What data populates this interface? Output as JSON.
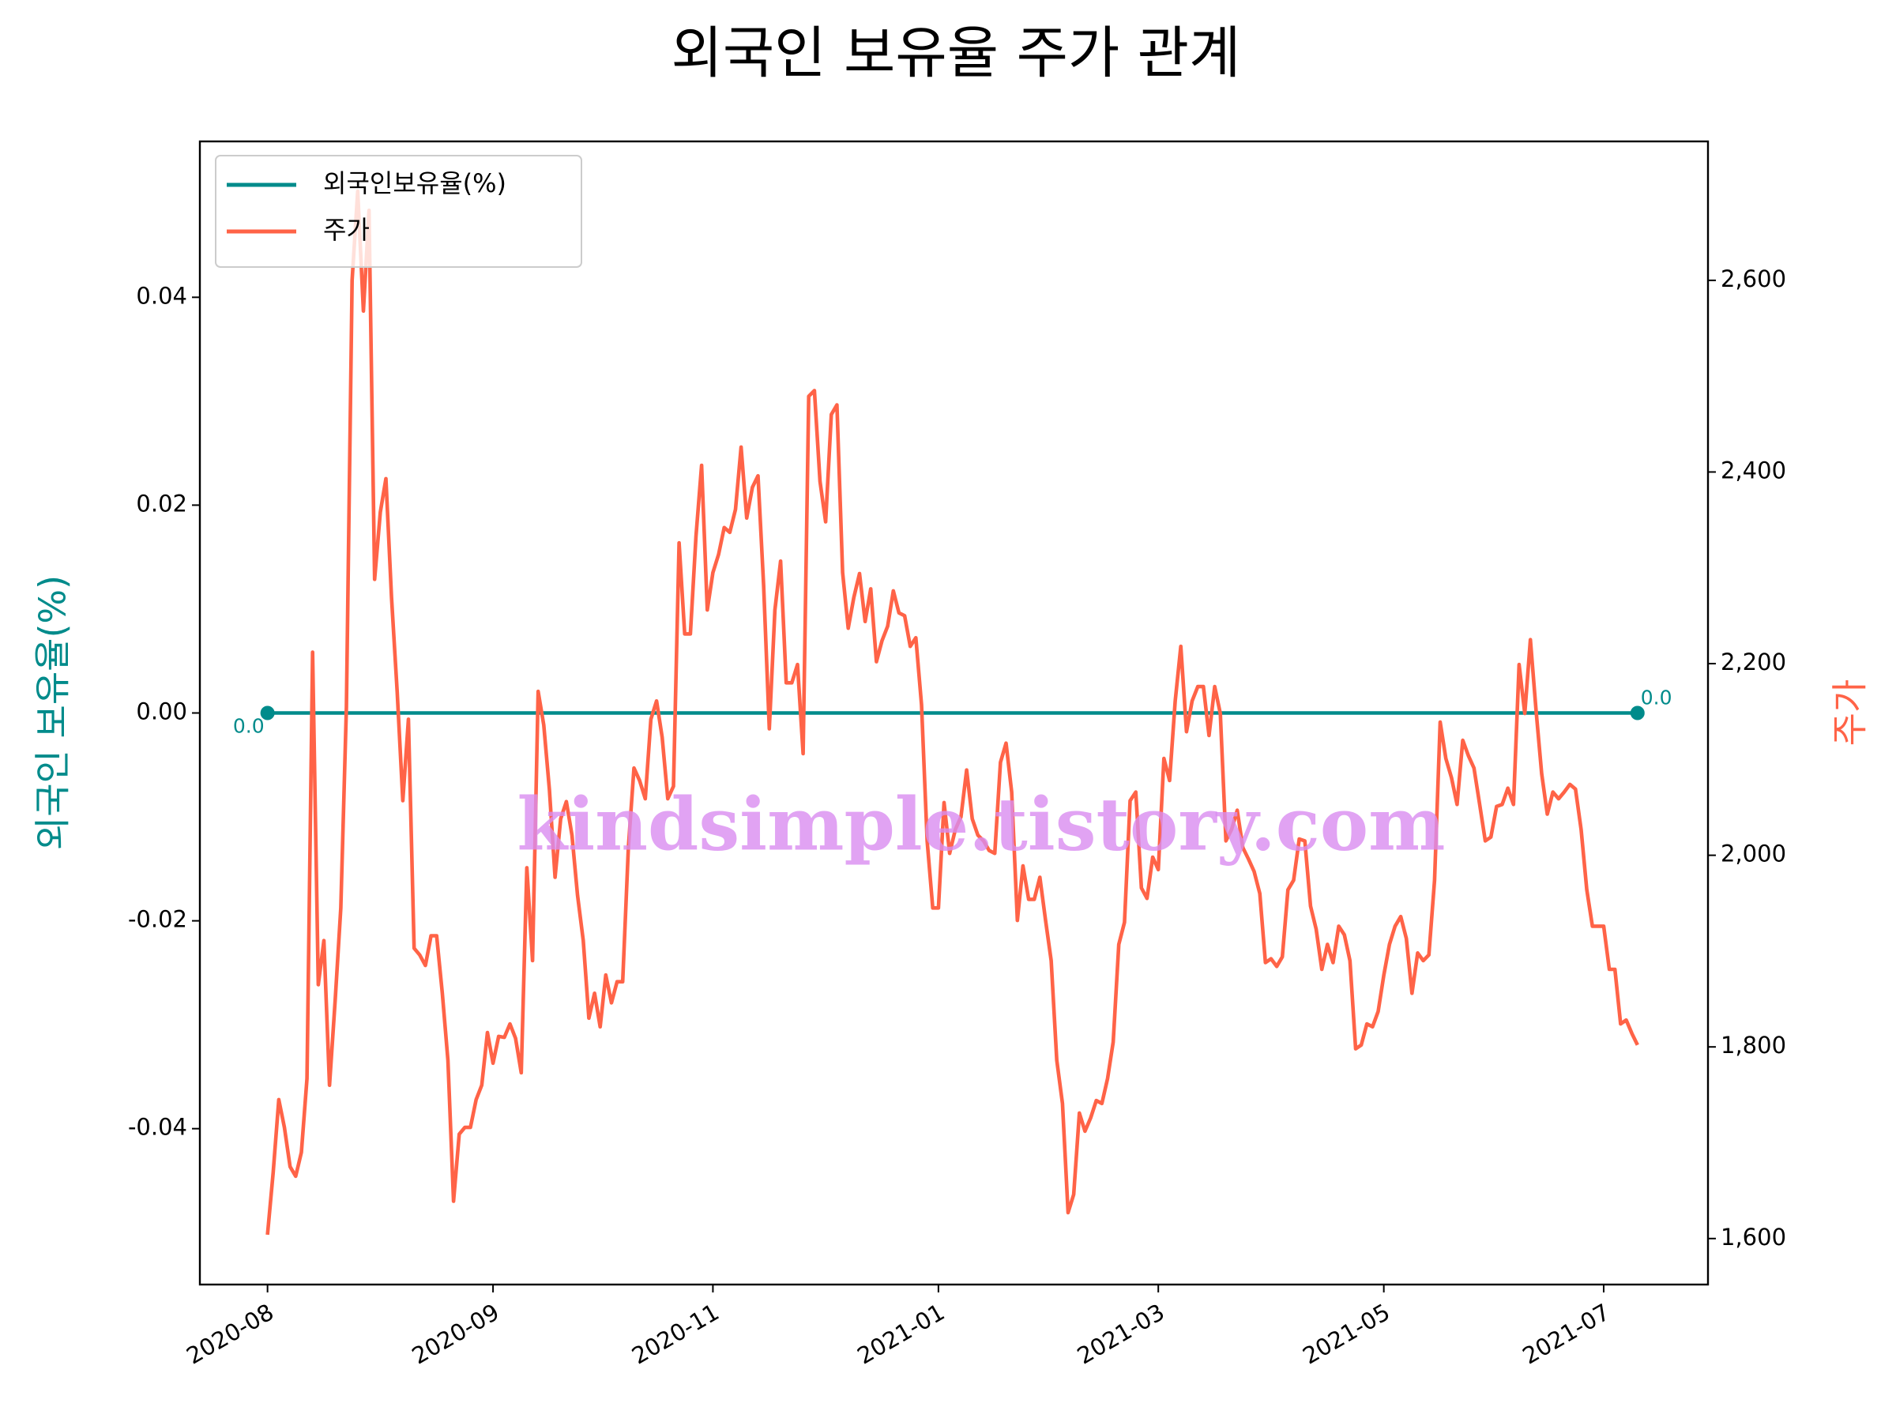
{
  "chart_data": {
    "type": "line",
    "title": "외국인 보유율 주가 관계",
    "y_label": "외국인 보유율(%)",
    "y2_label": "주가",
    "watermark": "kindsimple.tistory.com",
    "legend": "upper left",
    "xlim": [
      -12,
      255.5
    ],
    "xticks": [
      {
        "value": 0,
        "label": "2020-08"
      },
      {
        "value": 40,
        "label": "2020-09"
      },
      {
        "value": 79,
        "label": "2020-11"
      },
      {
        "value": 119,
        "label": "2021-01"
      },
      {
        "value": 158,
        "label": "2021-03"
      },
      {
        "value": 198,
        "label": "2021-05"
      },
      {
        "value": 237,
        "label": "2021-07"
      }
    ],
    "ylim": [
      -0.055,
      0.055
    ],
    "yticks": [
      -0.04,
      -0.02,
      {
        "value": 0,
        "label": "0.00"
      },
      0.02,
      0.04
    ],
    "y2lim": [
      1552,
      2745
    ],
    "y2ticks": [
      {
        "value": 1600,
        "label": "1,600"
      },
      {
        "value": 1800,
        "label": "1,800"
      },
      {
        "value": 2000,
        "label": "2,000"
      },
      {
        "value": 2200,
        "label": "2,200"
      },
      {
        "value": 2400,
        "label": "2,400"
      },
      {
        "value": 2600,
        "label": "2,600"
      }
    ],
    "series": [
      {
        "name": "외국인보유율(%)",
        "color": "#008b8b",
        "x": [
          0,
          243
        ],
        "values": [
          0,
          0
        ],
        "value_labels": [
          "0.0",
          "0.0"
        ]
      },
      {
        "name": "주가",
        "color": "#ff6347",
        "axis": "y2",
        "values": [
          1604,
          1669,
          1745,
          1716,
          1675,
          1665,
          1690,
          1767,
          2212,
          1865,
          1911,
          1760,
          1849,
          1945,
          2155,
          2600,
          2693,
          2568,
          2673,
          2288,
          2358,
          2393,
          2269,
          2170,
          2057,
          2142,
          1903,
          1896,
          1885,
          1916,
          1916,
          1856,
          1786,
          1639,
          1709,
          1716,
          1716,
          1745,
          1760,
          1815,
          1783,
          1811,
          1810,
          1824,
          1809,
          1773,
          1987,
          1890,
          2171,
          2136,
          2068,
          1977,
          2038,
          2056,
          2021,
          1958,
          1911,
          1830,
          1856,
          1821,
          1875,
          1846,
          1868,
          1868,
          2008,
          2091,
          2078,
          2059,
          2142,
          2161,
          2123,
          2059,
          2072,
          2326,
          2231,
          2231,
          2333,
          2407,
          2256,
          2295,
          2314,
          2342,
          2337,
          2361,
          2426,
          2352,
          2384,
          2396,
          2282,
          2132,
          2256,
          2307,
          2180,
          2180,
          2199,
          2106,
          2479,
          2485,
          2390,
          2348,
          2460,
          2470,
          2295,
          2237,
          2269,
          2294,
          2244,
          2278,
          2202,
          2224,
          2239,
          2276,
          2253,
          2250,
          2218,
          2227,
          2157,
          2015,
          1945,
          1945,
          2055,
          2002,
          2027,
          2040,
          2089,
          2038,
          2021,
          2015,
          2005,
          2002,
          2097,
          2117,
          2066,
          1932,
          1989,
          1954,
          1954,
          1977,
          1932,
          1890,
          1786,
          1741,
          1627,
          1646,
          1731,
          1712,
          1726,
          1744,
          1741,
          1767,
          1805,
          1907,
          1930,
          2057,
          2066,
          1966,
          1955,
          1998,
          1985,
          2101,
          2078,
          2161,
          2218,
          2129,
          2161,
          2176,
          2176,
          2125,
          2176,
          2148,
          2015,
          2027,
          2047,
          2008,
          1996,
          1983,
          1960,
          1888,
          1892,
          1884,
          1894,
          1964,
          1974,
          2017,
          2015,
          1947,
          1923,
          1881,
          1907,
          1888,
          1926,
          1917,
          1890,
          1798,
          1802,
          1824,
          1821,
          1837,
          1875,
          1907,
          1926,
          1936,
          1913,
          1856,
          1898,
          1890,
          1896,
          1974,
          2139,
          2101,
          2081,
          2053,
          2120,
          2104,
          2091,
          2053,
          2015,
          2019,
          2051,
          2053,
          2070,
          2053,
          2199,
          2148,
          2225,
          2152,
          2085,
          2043,
          2066,
          2059,
          2066,
          2074,
          2069,
          2027,
          1964,
          1926,
          1926,
          1926,
          1881,
          1881,
          1824,
          1828,
          1814,
          1802
        ]
      }
    ]
  }
}
